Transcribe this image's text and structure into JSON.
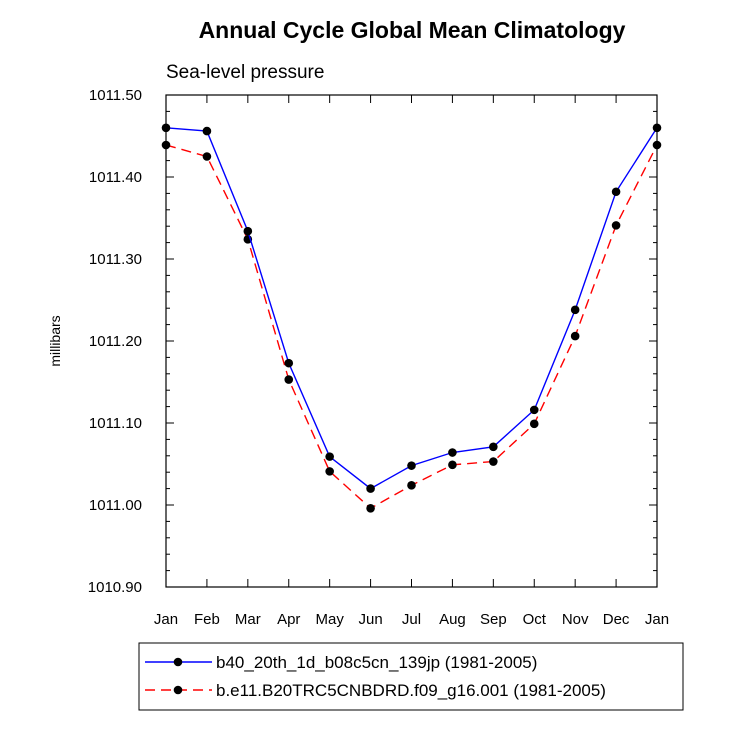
{
  "chart_data": {
    "type": "line",
    "title": "Annual Cycle Global Mean Climatology",
    "subtitle": "Sea-level pressure",
    "xlabel": "",
    "ylabel": "millibars",
    "categories": [
      "Jan",
      "Feb",
      "Mar",
      "Apr",
      "May",
      "Jun",
      "Jul",
      "Aug",
      "Sep",
      "Oct",
      "Nov",
      "Dec",
      "Jan"
    ],
    "ylim": [
      1010.9,
      1011.5
    ],
    "yticks": [
      "1010.90",
      "1011.00",
      "1011.10",
      "1011.20",
      "1011.30",
      "1011.40",
      "1011.50"
    ],
    "grid": false,
    "legend_position": "bottom",
    "series": [
      {
        "name": "b40_20th_1d_b08c5cn_139jp (1981-2005)",
        "color": "#0000ff",
        "dash": "solid",
        "values": [
          1011.46,
          1011.456,
          1011.334,
          1011.173,
          1011.059,
          1011.02,
          1011.048,
          1011.064,
          1011.071,
          1011.116,
          1011.238,
          1011.382,
          1011.46
        ]
      },
      {
        "name": "b.e11.B20TRC5CNBDRD.f09_g16.001 (1981-2005)",
        "color": "#ff0000",
        "dash": "dashed",
        "values": [
          1011.439,
          1011.425,
          1011.324,
          1011.153,
          1011.041,
          1010.996,
          1011.024,
          1011.049,
          1011.053,
          1011.099,
          1011.206,
          1011.341,
          1011.439
        ]
      }
    ]
  }
}
